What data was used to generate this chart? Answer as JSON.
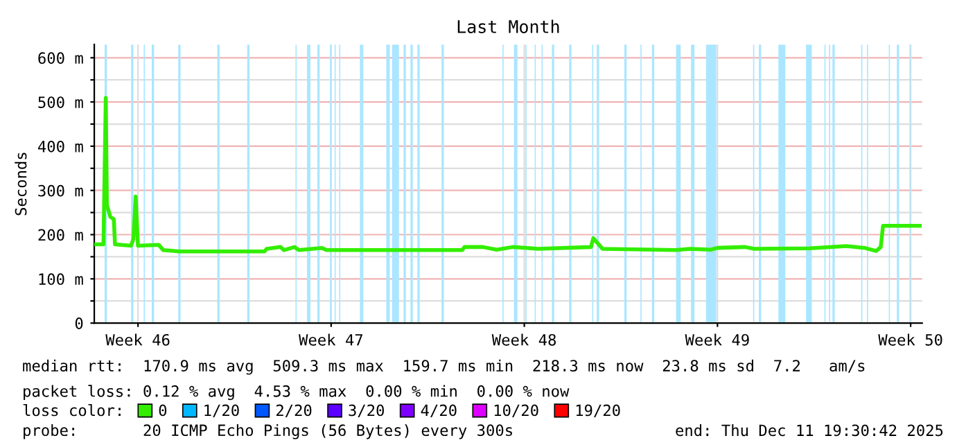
{
  "chart_data": {
    "type": "line",
    "title": "Last Month",
    "ylabel": "Seconds",
    "x": [
      "2025-11-11T22:00",
      "2025-11-12T06:00",
      "2025-11-12T08:00",
      "2025-11-12T09:00",
      "2025-11-12T12:00",
      "2025-11-12T15:00",
      "2025-11-12T16:00",
      "2025-11-13T06:00",
      "2025-11-13T08:00",
      "2025-11-13T10:00",
      "2025-11-13T12:00",
      "2025-11-14T06:00",
      "2025-11-14T10:00",
      "2025-11-15T00:00",
      "2025-11-18T02:00",
      "2025-11-18T04:00",
      "2025-11-18T16:00",
      "2025-11-18T19:00",
      "2025-11-19T04:00",
      "2025-11-19T08:00",
      "2025-11-20T04:00",
      "2025-11-20T08:00",
      "2025-11-25T06:00",
      "2025-11-25T08:00",
      "2025-11-26T00:00",
      "2025-11-26T12:00",
      "2025-11-27T02:00",
      "2025-11-28T00:00",
      "2025-11-29T22:00",
      "2025-11-30T00:00",
      "2025-11-30T08:00",
      "2025-12-03T00:00",
      "2025-12-03T12:00",
      "2025-12-04T06:00",
      "2025-12-04T12:00",
      "2025-12-05T12:00",
      "2025-12-05T20:00",
      "2025-12-07T20:00",
      "2025-12-09T04:00",
      "2025-12-09T20:00",
      "2025-12-10T06:00",
      "2025-12-10T10:00",
      "2025-12-10T12:00",
      "2025-12-11T20:00"
    ],
    "series": [
      {
        "name": "0",
        "color": "#33ee00",
        "values": [
          178,
          178,
          509,
          267,
          240,
          235,
          178,
          175,
          190,
          286,
          175,
          177,
          165,
          162,
          162,
          168,
          172,
          165,
          172,
          165,
          170,
          165,
          165,
          172,
          172,
          166,
          172,
          168,
          172,
          192,
          168,
          165,
          168,
          166,
          170,
          172,
          168,
          169,
          174,
          170,
          163,
          172,
          220,
          220
        ]
      },
      {
        "name": "1/20",
        "color": "#00b8ff",
        "values": [
          null,
          null,
          null,
          null,
          null,
          null,
          null,
          null,
          null,
          null,
          null,
          null,
          null,
          null,
          null,
          null,
          null,
          null,
          null,
          null,
          null,
          null,
          null,
          null,
          null,
          null,
          null,
          null,
          null,
          null,
          null,
          null,
          null,
          null,
          null,
          null,
          null,
          null,
          null,
          null,
          null,
          null,
          null,
          null
        ]
      },
      {
        "name": "2/20",
        "color": "#0059ff",
        "values": [
          null,
          null,
          null,
          null,
          null,
          null,
          null,
          null,
          null,
          null,
          null,
          null,
          null,
          null,
          null,
          null,
          null,
          null,
          null,
          null,
          null,
          null,
          null,
          null,
          null,
          null,
          null,
          null,
          null,
          null,
          null,
          null,
          null,
          null,
          null,
          null,
          null,
          null,
          null,
          null,
          null,
          null,
          null,
          null
        ]
      },
      {
        "name": "3/20",
        "color": "#5e00ff",
        "values": [
          null,
          null,
          null,
          null,
          null,
          null,
          null,
          null,
          null,
          null,
          null,
          null,
          null,
          null,
          null,
          null,
          null,
          null,
          null,
          null,
          null,
          null,
          null,
          null,
          null,
          null,
          null,
          null,
          null,
          null,
          null,
          null,
          null,
          null,
          null,
          null,
          null,
          null,
          null,
          null,
          null,
          null,
          null,
          null
        ]
      },
      {
        "name": "4/20",
        "color": "#7e00ff",
        "values": [
          null,
          null,
          null,
          null,
          null,
          null,
          null,
          null,
          null,
          null,
          null,
          null,
          null,
          null,
          null,
          null,
          null,
          null,
          null,
          null,
          null,
          null,
          null,
          null,
          null,
          null,
          null,
          null,
          null,
          null,
          null,
          null,
          null,
          null,
          null,
          null,
          null,
          null,
          null,
          null,
          null,
          null,
          null,
          null
        ]
      },
      {
        "name": "10/20",
        "color": "#dd00ff",
        "values": [
          null,
          null,
          null,
          null,
          null,
          null,
          null,
          null,
          null,
          null,
          null,
          null,
          null,
          null,
          null,
          null,
          null,
          null,
          null,
          null,
          null,
          null,
          null,
          null,
          null,
          null,
          null,
          null,
          null,
          null,
          null,
          null,
          null,
          null,
          null,
          null,
          null,
          null,
          null,
          null,
          null,
          null,
          null,
          null
        ]
      },
      {
        "name": "19/20",
        "color": "#ff0000",
        "values": [
          null,
          null,
          null,
          null,
          null,
          null,
          null,
          null,
          null,
          null,
          null,
          null,
          null,
          null,
          null,
          null,
          null,
          null,
          null,
          null,
          null,
          null,
          null,
          null,
          null,
          null,
          null,
          null,
          null,
          null,
          null,
          null,
          null,
          null,
          null,
          null,
          null,
          null,
          null,
          null,
          null,
          null,
          null,
          null
        ]
      }
    ],
    "xlim": [
      "2025-11-11T22:00",
      "2025-12-11T22:00"
    ],
    "xticks": [
      {
        "value": "2025-11-13T12:00",
        "label": "Week 46"
      },
      {
        "value": "2025-11-20T12:00",
        "label": "Week 47"
      },
      {
        "value": "2025-11-27T12:00",
        "label": "Week 48"
      },
      {
        "value": "2025-12-04T12:00",
        "label": "Week 49"
      },
      {
        "value": "2025-12-11T12:00",
        "label": "Week 50"
      }
    ],
    "ylim": [
      0,
      630
    ],
    "yticks": [
      {
        "value": 0,
        "label": "0"
      },
      {
        "value": 50,
        "label": null
      },
      {
        "value": 100,
        "label": "100 m"
      },
      {
        "value": 150,
        "label": null
      },
      {
        "value": 200,
        "label": "200 m"
      },
      {
        "value": 250,
        "label": null
      },
      {
        "value": 300,
        "label": "300 m"
      },
      {
        "value": 350,
        "label": null
      },
      {
        "value": 400,
        "label": "400 m"
      },
      {
        "value": 450,
        "label": null
      },
      {
        "value": 500,
        "label": "500 m"
      },
      {
        "value": 550,
        "label": null
      },
      {
        "value": 600,
        "label": "600 m"
      }
    ],
    "grid": true,
    "legend": "bottom",
    "legend_title": "loss color:",
    "bands": [
      {
        "axis": "x",
        "from": "2025-11-12T07:00",
        "to": "2025-11-12T09:00",
        "color": "#aae6ff"
      },
      {
        "axis": "x",
        "from": "2025-11-13T06:00",
        "to": "2025-11-13T08:00",
        "color": "#aae6ff"
      },
      {
        "axis": "x",
        "from": "2025-11-13T17:00",
        "to": "2025-11-13T18:00",
        "color": "#aae6ff"
      },
      {
        "axis": "x",
        "from": "2025-11-14T00:00",
        "to": "2025-11-14T02:00",
        "color": "#aae6ff"
      },
      {
        "axis": "x",
        "from": "2025-11-14T23:00",
        "to": "2025-11-15T01:00",
        "color": "#aae6ff"
      },
      {
        "axis": "x",
        "from": "2025-11-16T09:00",
        "to": "2025-11-16T11:00",
        "color": "#aae6ff"
      },
      {
        "axis": "x",
        "from": "2025-11-17T11:00",
        "to": "2025-11-17T13:00",
        "color": "#aae6ff"
      },
      {
        "axis": "x",
        "from": "2025-11-19T05:00",
        "to": "2025-11-19T06:00",
        "color": "#aae6ff"
      },
      {
        "axis": "x",
        "from": "2025-11-19T15:00",
        "to": "2025-11-19T18:00",
        "color": "#aae6ff"
      },
      {
        "axis": "x",
        "from": "2025-11-20T00:00",
        "to": "2025-11-20T02:00",
        "color": "#aae6ff"
      },
      {
        "axis": "x",
        "from": "2025-11-20T11:00",
        "to": "2025-11-20T12:00",
        "color": "#aae6ff"
      },
      {
        "axis": "x",
        "from": "2025-11-20T15:00",
        "to": "2025-11-20T16:00",
        "color": "#aae6ff"
      },
      {
        "axis": "x",
        "from": "2025-11-20T19:00",
        "to": "2025-11-20T20:00",
        "color": "#aae6ff"
      },
      {
        "axis": "x",
        "from": "2025-11-21T13:00",
        "to": "2025-11-21T16:00",
        "color": "#aae6ff"
      },
      {
        "axis": "x",
        "from": "2025-11-22T12:00",
        "to": "2025-11-22T15:00",
        "color": "#aae6ff"
      },
      {
        "axis": "x",
        "from": "2025-11-22T17:00",
        "to": "2025-11-22T23:00",
        "color": "#aae6ff"
      },
      {
        "axis": "x",
        "from": "2025-11-23T03:00",
        "to": "2025-11-23T05:00",
        "color": "#aae6ff"
      },
      {
        "axis": "x",
        "from": "2025-11-23T09:00",
        "to": "2025-11-23T11:00",
        "color": "#aae6ff"
      },
      {
        "axis": "x",
        "from": "2025-11-23T15:00",
        "to": "2025-11-23T17:00",
        "color": "#aae6ff"
      },
      {
        "axis": "x",
        "from": "2025-11-24T12:00",
        "to": "2025-11-24T14:00",
        "color": "#aae6ff"
      },
      {
        "axis": "x",
        "from": "2025-11-26T17:00",
        "to": "2025-11-26T18:00",
        "color": "#aae6ff"
      },
      {
        "axis": "x",
        "from": "2025-11-27T03:00",
        "to": "2025-11-27T06:00",
        "color": "#aae6ff"
      },
      {
        "axis": "x",
        "from": "2025-11-27T13:00",
        "to": "2025-11-27T14:00",
        "color": "#aae6ff"
      },
      {
        "axis": "x",
        "from": "2025-11-27T21:00",
        "to": "2025-11-27T22:00",
        "color": "#aae6ff"
      },
      {
        "axis": "x",
        "from": "2025-11-28T03:00",
        "to": "2025-11-28T04:00",
        "color": "#aae6ff"
      },
      {
        "axis": "x",
        "from": "2025-11-28T12:00",
        "to": "2025-11-28T14:00",
        "color": "#aae6ff"
      },
      {
        "axis": "x",
        "from": "2025-11-29T03:00",
        "to": "2025-11-29T05:00",
        "color": "#aae6ff"
      },
      {
        "axis": "x",
        "from": "2025-11-29T23:00",
        "to": "2025-11-30T00:00",
        "color": "#aae6ff"
      },
      {
        "axis": "x",
        "from": "2025-11-30T03:00",
        "to": "2025-11-30T05:00",
        "color": "#aae6ff"
      },
      {
        "axis": "x",
        "from": "2025-12-01T03:00",
        "to": "2025-12-01T05:00",
        "color": "#aae6ff"
      },
      {
        "axis": "x",
        "from": "2025-12-01T17:00",
        "to": "2025-12-01T18:00",
        "color": "#aae6ff"
      },
      {
        "axis": "x",
        "from": "2025-12-02T03:00",
        "to": "2025-12-02T05:00",
        "color": "#aae6ff"
      },
      {
        "axis": "x",
        "from": "2025-12-03T00:00",
        "to": "2025-12-03T04:00",
        "color": "#aae6ff"
      },
      {
        "axis": "x",
        "from": "2025-12-03T13:00",
        "to": "2025-12-03T16:00",
        "color": "#aae6ff"
      },
      {
        "axis": "x",
        "from": "2025-12-04T02:00",
        "to": "2025-12-04T11:00",
        "color": "#aae6ff"
      },
      {
        "axis": "x",
        "from": "2025-12-05T19:00",
        "to": "2025-12-05T20:00",
        "color": "#aae6ff"
      },
      {
        "axis": "x",
        "from": "2025-12-06T00:00",
        "to": "2025-12-06T02:00",
        "color": "#aae6ff"
      },
      {
        "axis": "x",
        "from": "2025-12-06T17:00",
        "to": "2025-12-06T23:00",
        "color": "#aae6ff"
      },
      {
        "axis": "x",
        "from": "2025-12-07T17:00",
        "to": "2025-12-07T22:00",
        "color": "#aae6ff"
      },
      {
        "axis": "x",
        "from": "2025-12-08T09:00",
        "to": "2025-12-08T10:00",
        "color": "#aae6ff"
      },
      {
        "axis": "x",
        "from": "2025-12-08T13:00",
        "to": "2025-12-08T14:00",
        "color": "#aae6ff"
      },
      {
        "axis": "x",
        "from": "2025-12-08T16:00",
        "to": "2025-12-08T18:00",
        "color": "#aae6ff"
      },
      {
        "axis": "x",
        "from": "2025-12-09T17:00",
        "to": "2025-12-09T18:00",
        "color": "#aae6ff"
      },
      {
        "axis": "x",
        "from": "2025-12-09T22:00",
        "to": "2025-12-09T23:00",
        "color": "#aae6ff"
      },
      {
        "axis": "x",
        "from": "2025-12-10T17:00",
        "to": "2025-12-10T18:00",
        "color": "#aae6ff"
      },
      {
        "axis": "x",
        "from": "2025-12-11T00:00",
        "to": "2025-12-11T02:00",
        "color": "#aae6ff"
      },
      {
        "axis": "x",
        "from": "2025-12-11T11:00",
        "to": "2025-12-11T12:00",
        "color": "#aae6ff"
      }
    ],
    "annotations": [
      "median rtt:  170.9 ms avg  509.3 ms max  159.7 ms min  218.3 ms now  23.8 ms sd  7.2   am/s",
      "packet loss: 0.12 % avg  4.53 % max  0.00 % min  0.00 % now",
      "probe:       20 ICMP Echo Pings (56 Bytes) every 300s",
      "end: Thu Dec 11 19:30:42 2025"
    ]
  }
}
